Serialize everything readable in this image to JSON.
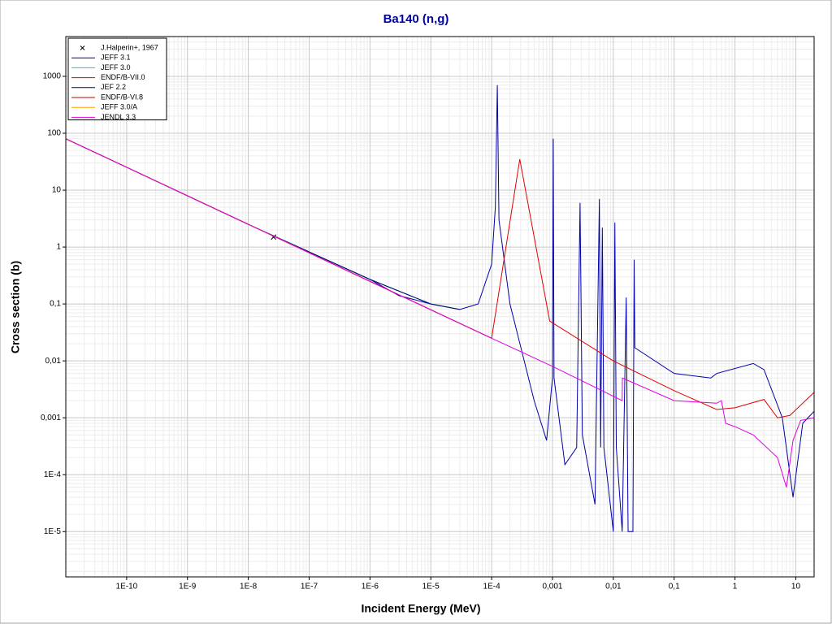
{
  "chart_data": {
    "type": "line",
    "title": "Ba140 (n,g)",
    "x_label": "Incident Energy (MeV)",
    "y_label": "Cross section (b)",
    "xscale": "log",
    "yscale": "log",
    "grid": true,
    "legend": "upper left",
    "xlim": [
      1e-11,
      20
    ],
    "ylim": [
      1.6e-06,
      5000
    ],
    "xticks": [
      {
        "value": 1e-10,
        "label": "1E-10"
      },
      {
        "value": 1e-09,
        "label": "1E-9"
      },
      {
        "value": 1e-08,
        "label": "1E-8"
      },
      {
        "value": 1e-07,
        "label": "1E-7"
      },
      {
        "value": 1e-06,
        "label": "1E-6"
      },
      {
        "value": 1e-05,
        "label": "1E-5"
      },
      {
        "value": 0.0001,
        "label": "1E-4"
      },
      {
        "value": 0.001,
        "label": "0,001"
      },
      {
        "value": 0.01,
        "label": "0,01"
      },
      {
        "value": 0.1,
        "label": "0,1"
      },
      1,
      10
    ],
    "yticks": [
      {
        "value": 1e-05,
        "label": "1E-5"
      },
      {
        "value": 0.0001,
        "label": "1E-4"
      },
      {
        "value": 0.001,
        "label": "0,001"
      },
      {
        "value": 0.01,
        "label": "0,01"
      },
      {
        "value": 0.1,
        "label": "0,1"
      },
      1,
      10,
      100,
      1000
    ],
    "series": [
      {
        "name": "J.Halperin+, 1967",
        "color": "#000000",
        "mode": "markers",
        "x": [
          2.6e-08
        ],
        "values": [
          1.5
        ]
      },
      {
        "name": "JEFF 3.1",
        "color": "#0000a8",
        "mode": "line",
        "x": [
          1e-11,
          1e-08,
          1e-06,
          3e-06,
          1e-05,
          3e-05,
          6e-05,
          0.0001,
          0.000115,
          0.000124,
          0.000132,
          0.0002,
          0.0005,
          0.0008,
          0.001,
          0.00103,
          0.00106,
          0.0016,
          0.0025,
          0.00284,
          0.0031,
          0.005,
          0.0059,
          0.0062,
          0.0066,
          0.007,
          0.01,
          0.0106,
          0.0112,
          0.014,
          0.0163,
          0.0175,
          0.021,
          0.022,
          0.0226,
          0.1,
          0.4,
          0.5,
          2,
          3,
          6,
          9,
          13,
          20
        ],
        "values": [
          80,
          2.5,
          0.27,
          0.14,
          0.1,
          0.08,
          0.1,
          0.5,
          5,
          700,
          3,
          0.1,
          0.002,
          0.0004,
          0.005,
          80,
          0.005,
          0.00015,
          0.0003,
          6,
          0.0005,
          3e-05,
          7,
          0.0003,
          2.2,
          0.0003,
          1e-05,
          2.7,
          0.0003,
          1e-05,
          0.13,
          1e-05,
          1e-05,
          0.6,
          0.017,
          0.006,
          0.005,
          0.006,
          0.009,
          0.007,
          0.001,
          4e-05,
          0.0008,
          0.0013
        ]
      },
      {
        "name": "JEFF 3.0",
        "color": "#00c8ff",
        "mode": "line",
        "x": [
          1e-11,
          1e-08,
          1e-06,
          1e-05,
          3e-05
        ],
        "values": [
          80,
          2.5,
          0.27,
          0.1,
          0.08
        ]
      },
      {
        "name": "ENDF/B-VII.0",
        "color": "#e00000",
        "mode": "line",
        "x": [
          1e-11,
          1e-06,
          0.0001,
          0.00029,
          0.0009,
          0.01,
          0.1,
          0.5,
          1,
          3,
          5,
          8,
          20
        ],
        "values": [
          80,
          0.25,
          0.025,
          35,
          0.05,
          0.01,
          0.003,
          0.0014,
          0.0015,
          0.0021,
          0.001,
          0.0011,
          0.0028
        ]
      },
      {
        "name": "JEF 2.2",
        "color": "#000060",
        "mode": "line",
        "x": [
          1e-11,
          1e-08,
          1e-06,
          1e-05,
          3e-05
        ],
        "values": [
          80,
          2.5,
          0.27,
          0.1,
          0.08
        ]
      },
      {
        "name": "ENDF/B-VI.8",
        "color": "#c00000",
        "mode": "line",
        "x": [
          1e-11,
          1e-06,
          0.0001
        ],
        "values": [
          80,
          0.25,
          0.025
        ]
      },
      {
        "name": "JEFF 3.0/A",
        "color": "#ffa000",
        "mode": "line",
        "x": [
          1e-11,
          1e-06
        ],
        "values": [
          80,
          0.25
        ]
      },
      {
        "name": "JENDL 3.3",
        "color": "#e000e0",
        "mode": "line",
        "x": [
          1e-11,
          1e-06,
          0.0001,
          0.001,
          0.014,
          0.0141,
          0.1,
          0.5,
          0.6,
          0.7,
          1,
          2,
          5,
          7,
          9,
          12,
          20
        ],
        "values": [
          80,
          0.25,
          0.025,
          0.008,
          0.002,
          0.005,
          0.002,
          0.0018,
          0.002,
          0.0008,
          0.0007,
          0.0005,
          0.0002,
          6e-05,
          0.0004,
          0.0009,
          0.001
        ]
      }
    ]
  }
}
